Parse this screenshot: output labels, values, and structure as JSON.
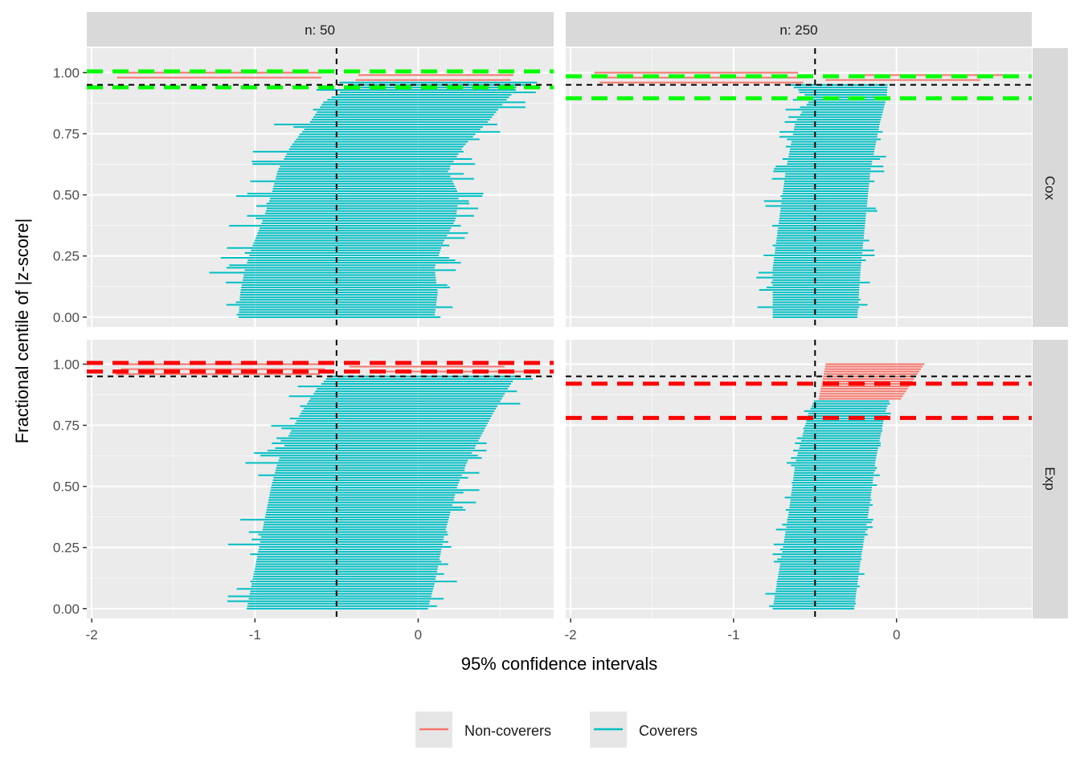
{
  "chart_data": {
    "type": "faceted-interval",
    "xlabel": "95% confidence intervals",
    "ylabel": "Fractional centile of |z-score|",
    "xlim": [
      -2.03,
      0.83
    ],
    "ylim": [
      -0.04,
      1.1
    ],
    "x_ticks": [
      -2,
      -1,
      0
    ],
    "x_tick_labels": [
      "-2",
      "-1",
      "0"
    ],
    "y_ticks": [
      0,
      0.25,
      0.5,
      0.75,
      1
    ],
    "y_tick_labels": [
      "0.00",
      "0.25",
      "0.50",
      "0.75",
      "1.00"
    ],
    "grid": true,
    "true_value": -0.5,
    "nominal_coverage": 0.95,
    "column_strips": [
      "n: 50",
      "n: 250"
    ],
    "row_strips": [
      "Cox",
      "Exp"
    ],
    "legend": {
      "position": "bottom",
      "entries": [
        {
          "label": "Non-coverers",
          "color": "#F8766D"
        },
        {
          "label": "Coverers",
          "color": "#00BFC4"
        }
      ]
    },
    "panels": [
      {
        "row": "Cox",
        "col": "n: 50",
        "n_intervals": 100,
        "low_anchors": [
          [
            0,
            -1.1
          ],
          [
            0.1,
            -1.09
          ],
          [
            0.2,
            -1.06
          ],
          [
            0.3,
            -1.01
          ],
          [
            0.4,
            -0.95
          ],
          [
            0.5,
            -0.9
          ],
          [
            0.6,
            -0.86
          ],
          [
            0.7,
            -0.78
          ],
          [
            0.8,
            -0.66
          ],
          [
            0.88,
            -0.58
          ],
          [
            0.93,
            -0.45
          ],
          [
            1,
            -0.3
          ]
        ],
        "high_anchors": [
          [
            0,
            0.1
          ],
          [
            0.1,
            0.12
          ],
          [
            0.2,
            0.1
          ],
          [
            0.3,
            0.15
          ],
          [
            0.4,
            0.23
          ],
          [
            0.5,
            0.25
          ],
          [
            0.6,
            0.18
          ],
          [
            0.7,
            0.28
          ],
          [
            0.8,
            0.43
          ],
          [
            0.88,
            0.53
          ],
          [
            0.93,
            0.6
          ],
          [
            1,
            0.6
          ]
        ],
        "non_coverer_top_fraction": 0.04,
        "spread": 0.17,
        "band_lines": [
          0.94,
          1.005
        ],
        "band_color": "#00FF00"
      },
      {
        "row": "Cox",
        "col": "n: 250",
        "n_intervals": 100,
        "low_anchors": [
          [
            0,
            -0.76
          ],
          [
            0.2,
            -0.76
          ],
          [
            0.4,
            -0.72
          ],
          [
            0.6,
            -0.68
          ],
          [
            0.8,
            -0.62
          ],
          [
            0.9,
            -0.52
          ],
          [
            1,
            -0.8
          ]
        ],
        "high_anchors": [
          [
            0,
            -0.24
          ],
          [
            0.2,
            -0.22
          ],
          [
            0.4,
            -0.19
          ],
          [
            0.6,
            -0.16
          ],
          [
            0.8,
            -0.1
          ],
          [
            0.9,
            -0.06
          ],
          [
            1,
            -0.05
          ]
        ],
        "non_coverer_top_fraction": 0.05,
        "spread": 0.09,
        "band_lines": [
          0.895,
          0.985
        ],
        "band_color": "#00FF00"
      },
      {
        "row": "Exp",
        "col": "n: 50",
        "n_intervals": 100,
        "low_anchors": [
          [
            0,
            -1.05
          ],
          [
            0.1,
            -1.02
          ],
          [
            0.2,
            -0.99
          ],
          [
            0.3,
            -0.96
          ],
          [
            0.4,
            -0.93
          ],
          [
            0.5,
            -0.9
          ],
          [
            0.6,
            -0.86
          ],
          [
            0.7,
            -0.8
          ],
          [
            0.8,
            -0.72
          ],
          [
            0.9,
            -0.62
          ],
          [
            0.95,
            -0.55
          ],
          [
            1,
            -0.47
          ]
        ],
        "high_anchors": [
          [
            0,
            0.06
          ],
          [
            0.1,
            0.1
          ],
          [
            0.2,
            0.13
          ],
          [
            0.3,
            0.16
          ],
          [
            0.4,
            0.2
          ],
          [
            0.5,
            0.24
          ],
          [
            0.6,
            0.3
          ],
          [
            0.7,
            0.38
          ],
          [
            0.8,
            0.46
          ],
          [
            0.9,
            0.55
          ],
          [
            0.95,
            0.6
          ],
          [
            1,
            0.65
          ]
        ],
        "non_coverer_top_fraction": 0.05,
        "spread": 0.15,
        "band_lines": [
          0.97,
          1.005
        ],
        "band_color": "#FF0000"
      },
      {
        "row": "Exp",
        "col": "n: 250",
        "n_intervals": 100,
        "low_anchors": [
          [
            0,
            -0.76
          ],
          [
            0.2,
            -0.71
          ],
          [
            0.4,
            -0.66
          ],
          [
            0.6,
            -0.62
          ],
          [
            0.8,
            -0.54
          ],
          [
            0.86,
            -0.5
          ],
          [
            0.9,
            -0.48
          ],
          [
            1,
            -0.45
          ]
        ],
        "high_anchors": [
          [
            0,
            -0.26
          ],
          [
            0.2,
            -0.22
          ],
          [
            0.4,
            -0.17
          ],
          [
            0.6,
            -0.13
          ],
          [
            0.8,
            -0.07
          ],
          [
            0.86,
            -0.04
          ],
          [
            0.9,
            0.0
          ],
          [
            1,
            0.15
          ]
        ],
        "non_coverer_top_fraction": 0.15,
        "spread": 0.05,
        "band_lines": [
          0.78,
          0.92
        ],
        "band_color": "#FF0000"
      }
    ]
  }
}
